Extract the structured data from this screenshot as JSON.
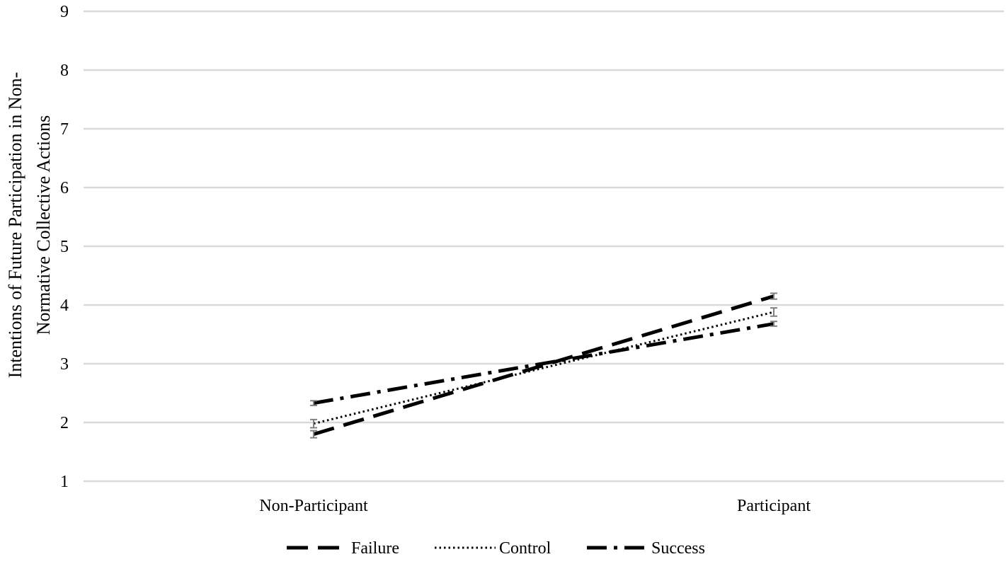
{
  "chart_data": {
    "type": "line",
    "title": "",
    "xlabel": "",
    "ylabel_lines": [
      "Intentions of Future Participation in Non-",
      "Normative Collective Actions"
    ],
    "categories": [
      "Non-Participant",
      "Participant"
    ],
    "ylim": [
      1,
      9
    ],
    "yticks": [
      1,
      2,
      3,
      4,
      5,
      6,
      7,
      8,
      9
    ],
    "grid": true,
    "legend_position": "bottom",
    "series": [
      {
        "name": "Failure",
        "values": [
          1.8,
          4.15
        ],
        "errors": [
          0.06,
          0.05
        ],
        "style": "dashed",
        "color": "#000000"
      },
      {
        "name": "Control",
        "values": [
          1.98,
          3.88
        ],
        "errors": [
          0.07,
          0.07
        ],
        "style": "dotted",
        "color": "#000000"
      },
      {
        "name": "Success",
        "values": [
          2.33,
          3.68
        ],
        "errors": [
          0.04,
          0.04
        ],
        "style": "dash-dot",
        "color": "#000000"
      }
    ],
    "gridline_color": "#d9d9d9",
    "errorbar_color": "#808080"
  }
}
